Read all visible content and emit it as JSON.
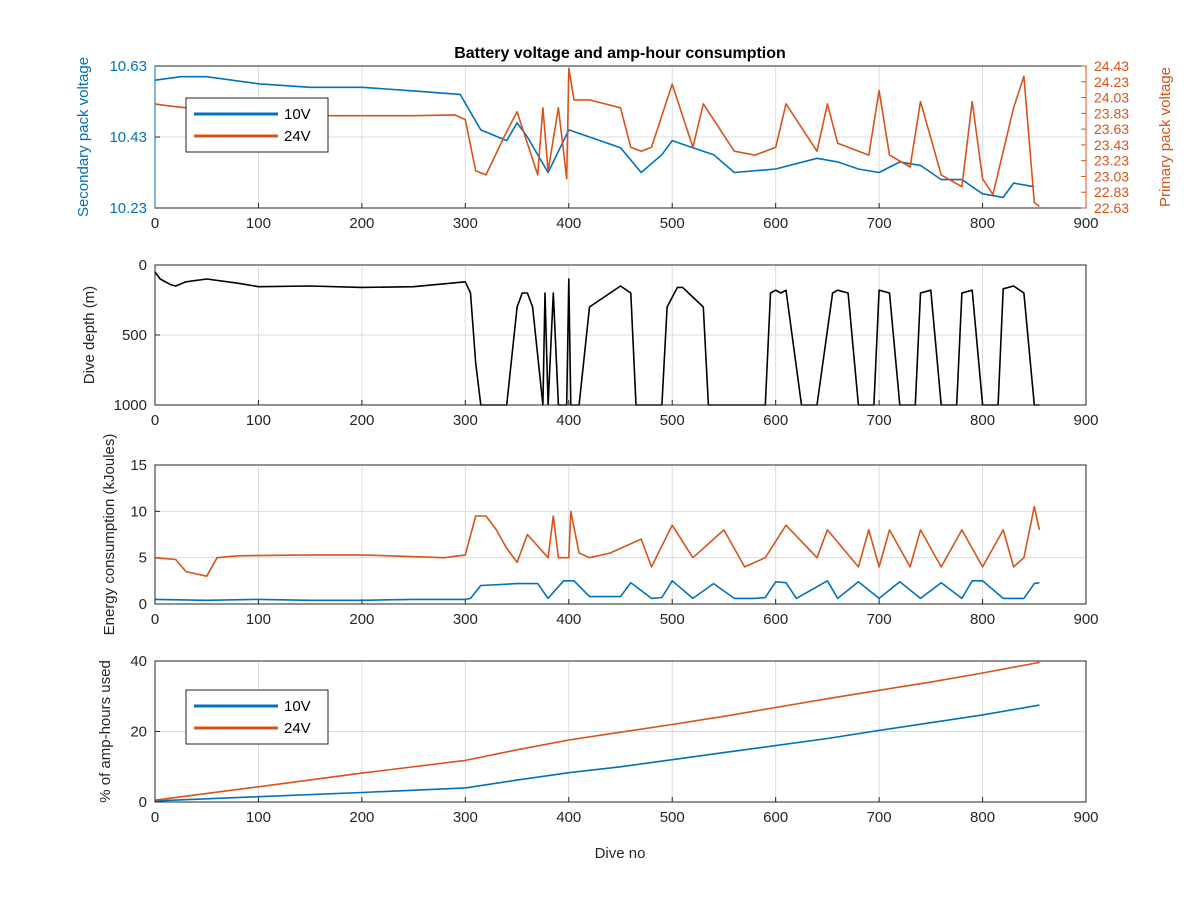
{
  "colors": {
    "c10v": "#0072BD",
    "c24v": "#D95319",
    "depth": "#000000",
    "grid": "#DCDCDC",
    "axis": "#262626"
  },
  "xticks": [
    "0",
    "100",
    "200",
    "300",
    "400",
    "500",
    "600",
    "700",
    "800",
    "900"
  ],
  "chart_data": [
    {
      "type": "line",
      "title": "Battery voltage and amp-hour consumption",
      "ylabel": "Secondary pack voltage",
      "ylabel_right": "Primary pack voltage",
      "xlim": [
        0,
        900
      ],
      "ylim_left": [
        10.23,
        10.63
      ],
      "ylim_right": [
        22.63,
        24.43
      ],
      "yticks_left": [
        "10.23",
        "10.43",
        "10.63"
      ],
      "yticks_right": [
        "22.63",
        "22.83",
        "23.03",
        "23.23",
        "23.43",
        "23.63",
        "23.83",
        "24.03",
        "24.23",
        "24.43"
      ],
      "grid": true,
      "legend": "top-left",
      "series": [
        {
          "name": "10V",
          "axis": "left",
          "color": "#0072BD",
          "x": [
            0,
            25,
            50,
            100,
            150,
            200,
            250,
            295,
            305,
            315,
            340,
            350,
            360,
            370,
            380,
            400,
            420,
            450,
            470,
            490,
            500,
            520,
            540,
            560,
            600,
            640,
            660,
            680,
            700,
            720,
            740,
            760,
            780,
            800,
            820,
            830,
            850
          ],
          "y": [
            10.59,
            10.6,
            10.6,
            10.58,
            10.57,
            10.57,
            10.56,
            10.55,
            10.5,
            10.45,
            10.42,
            10.47,
            10.43,
            10.38,
            10.33,
            10.45,
            10.43,
            10.4,
            10.33,
            10.38,
            10.42,
            10.4,
            10.38,
            10.33,
            10.34,
            10.37,
            10.36,
            10.34,
            10.33,
            10.36,
            10.35,
            10.31,
            10.31,
            10.27,
            10.26,
            10.3,
            10.29
          ]
        },
        {
          "name": "24V",
          "axis": "right",
          "color": "#D95319",
          "x": [
            0,
            10,
            30,
            60,
            100,
            150,
            200,
            250,
            290,
            300,
            310,
            320,
            340,
            350,
            370,
            375,
            380,
            390,
            398,
            400,
            405,
            420,
            450,
            460,
            470,
            480,
            500,
            520,
            530,
            560,
            580,
            600,
            610,
            640,
            650,
            660,
            690,
            700,
            710,
            730,
            740,
            760,
            780,
            790,
            800,
            810,
            830,
            840,
            850,
            855
          ],
          "y": [
            23.95,
            23.93,
            23.9,
            23.87,
            23.82,
            23.8,
            23.8,
            23.8,
            23.81,
            23.75,
            23.1,
            23.05,
            23.6,
            23.85,
            23.05,
            23.9,
            23.1,
            23.9,
            23.0,
            24.4,
            24.0,
            24.0,
            23.9,
            23.4,
            23.35,
            23.4,
            24.2,
            23.4,
            23.95,
            23.35,
            23.3,
            23.4,
            23.95,
            23.35,
            23.95,
            23.45,
            23.3,
            24.12,
            23.3,
            23.15,
            23.98,
            23.05,
            22.9,
            23.98,
            23.0,
            22.8,
            23.9,
            24.3,
            22.7,
            22.65
          ]
        }
      ]
    },
    {
      "type": "line",
      "ylabel": "Dive depth (m)",
      "xlim": [
        0,
        900
      ],
      "ylim": [
        0,
        1000
      ],
      "y_reversed": true,
      "yticks": [
        "0",
        "500",
        "1000"
      ],
      "grid": true,
      "series": [
        {
          "color": "#000000",
          "x": [
            0,
            5,
            15,
            20,
            30,
            50,
            80,
            100,
            150,
            200,
            250,
            300,
            305,
            310,
            315,
            340,
            350,
            355,
            360,
            365,
            375,
            377,
            380,
            385,
            390,
            392,
            398,
            400,
            402,
            410,
            420,
            430,
            440,
            450,
            460,
            465,
            480,
            490,
            495,
            505,
            510,
            530,
            535,
            545,
            560,
            565,
            590,
            595,
            600,
            605,
            610,
            625,
            630,
            640,
            655,
            660,
            670,
            680,
            695,
            700,
            710,
            720,
            735,
            740,
            750,
            760,
            775,
            780,
            790,
            800,
            815,
            820,
            830,
            840,
            850,
            855
          ],
          "y": [
            50,
            100,
            140,
            150,
            120,
            100,
            130,
            155,
            150,
            160,
            155,
            120,
            200,
            700,
            1000,
            1000,
            300,
            200,
            200,
            300,
            1000,
            200,
            1000,
            200,
            1000,
            1000,
            1000,
            100,
            1000,
            1000,
            300,
            250,
            200,
            150,
            200,
            1000,
            1000,
            1000,
            300,
            160,
            160,
            300,
            1000,
            1000,
            1000,
            1000,
            1000,
            200,
            180,
            200,
            180,
            1000,
            1000,
            1000,
            200,
            180,
            200,
            1000,
            1000,
            180,
            200,
            1000,
            1000,
            200,
            180,
            1000,
            1000,
            200,
            180,
            1000,
            1000,
            170,
            150,
            200,
            1000,
            1000
          ]
        }
      ]
    },
    {
      "type": "line",
      "ylabel": "Energy consumption (kJoules)",
      "xlim": [
        0,
        900
      ],
      "ylim": [
        0,
        15
      ],
      "yticks": [
        "0",
        "5",
        "10",
        "15"
      ],
      "grid": true,
      "series": [
        {
          "color": "#D95319",
          "x": [
            0,
            20,
            30,
            50,
            60,
            80,
            150,
            200,
            280,
            300,
            310,
            320,
            330,
            340,
            350,
            360,
            380,
            385,
            390,
            400,
            402,
            410,
            420,
            440,
            470,
            480,
            500,
            520,
            550,
            570,
            590,
            610,
            640,
            650,
            680,
            690,
            700,
            710,
            730,
            740,
            760,
            780,
            800,
            820,
            830,
            840,
            850,
            855
          ],
          "y": [
            5,
            4.8,
            3.5,
            3,
            5,
            5.2,
            5.3,
            5.3,
            5,
            5.3,
            9.5,
            9.5,
            8,
            6,
            4.5,
            7.5,
            5,
            9.5,
            5,
            5,
            10,
            5.5,
            5,
            5.5,
            7,
            4,
            8.5,
            5,
            8,
            4,
            5,
            8.5,
            5,
            8,
            4,
            8,
            4,
            8,
            4,
            8,
            4,
            8,
            4,
            8,
            4,
            5,
            10.5,
            8
          ]
        },
        {
          "color": "#0072BD",
          "x": [
            0,
            50,
            100,
            150,
            200,
            250,
            300,
            305,
            315,
            350,
            370,
            380,
            395,
            405,
            420,
            450,
            460,
            480,
            490,
            500,
            520,
            540,
            560,
            580,
            590,
            600,
            610,
            620,
            650,
            660,
            680,
            700,
            720,
            740,
            760,
            780,
            790,
            800,
            820,
            830,
            840,
            850,
            855
          ],
          "y": [
            0.5,
            0.4,
            0.5,
            0.4,
            0.4,
            0.5,
            0.5,
            0.6,
            2,
            2.2,
            2.2,
            0.6,
            2.5,
            2.5,
            0.8,
            0.8,
            2.3,
            0.6,
            0.7,
            2.5,
            0.6,
            2.2,
            0.6,
            0.6,
            0.7,
            2.4,
            2.3,
            0.6,
            2.5,
            0.6,
            2.4,
            0.6,
            2.4,
            0.6,
            2.3,
            0.6,
            2.5,
            2.5,
            0.6,
            0.6,
            0.6,
            2.2,
            2.3
          ]
        }
      ]
    },
    {
      "type": "line",
      "ylabel": "% of amp-hours used",
      "xlabel": "Dive no",
      "xlim": [
        0,
        900
      ],
      "ylim": [
        0,
        40
      ],
      "yticks": [
        "0",
        "20",
        "40"
      ],
      "grid": true,
      "legend": "top-left",
      "series": [
        {
          "name": "10V",
          "color": "#0072BD",
          "x": [
            0,
            100,
            200,
            300,
            350,
            400,
            450,
            500,
            550,
            600,
            650,
            700,
            750,
            800,
            855
          ],
          "y": [
            0.3,
            1.5,
            2.7,
            4,
            6.2,
            8.3,
            10,
            12,
            14,
            16,
            18,
            20.3,
            22.5,
            24.7,
            27.5
          ]
        },
        {
          "name": "24V",
          "color": "#D95319",
          "x": [
            0,
            100,
            200,
            300,
            350,
            400,
            450,
            500,
            550,
            600,
            650,
            700,
            750,
            800,
            855
          ],
          "y": [
            0.5,
            4.3,
            8.2,
            11.8,
            14.8,
            17.6,
            19.8,
            22,
            24.3,
            26.8,
            29.3,
            31.7,
            34,
            36.6,
            39.6
          ]
        }
      ]
    }
  ]
}
